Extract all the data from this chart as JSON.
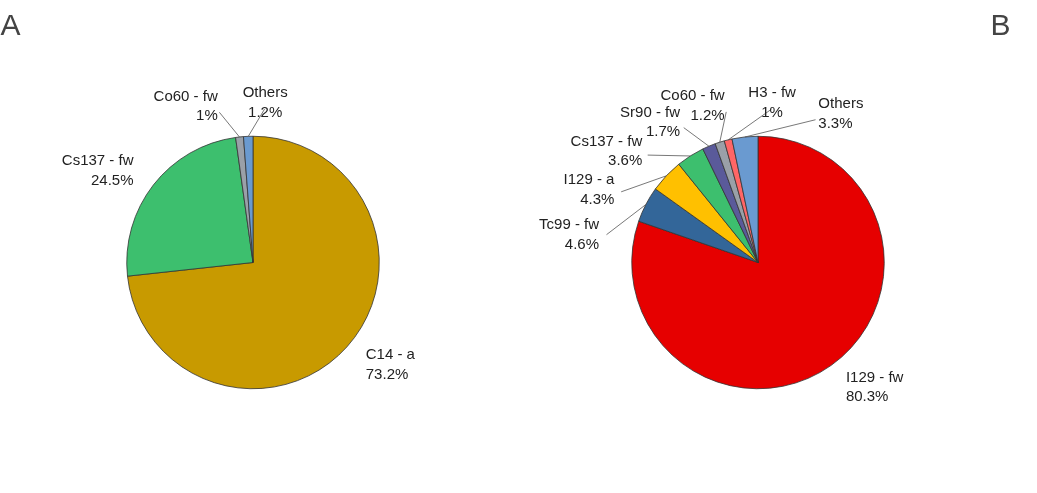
{
  "chart_data": [
    {
      "type": "pie",
      "title": "A",
      "categories": [
        "C14 - a",
        "Cs137 - fw",
        "Co60 - fw",
        "Others"
      ],
      "values": [
        73.2,
        24.5,
        1,
        1.2
      ],
      "value_labels": [
        "73.2%",
        "24.5%",
        "1%",
        "1.2%"
      ],
      "colors": [
        "#c89a00",
        "#3dbf6e",
        "#9aa0a8",
        "#6a9ad0"
      ]
    },
    {
      "type": "pie",
      "title": "B",
      "categories": [
        "I129 - fw",
        "Tc99 - fw",
        "I129 - a",
        "Cs137 - fw",
        "Sr90 - fw",
        "Co60 - fw",
        "H3 - fw",
        "Others"
      ],
      "values": [
        80.3,
        4.6,
        4.3,
        3.6,
        1.7,
        1.2,
        1,
        3.3
      ],
      "value_labels": [
        "80.3%",
        "4.6%",
        "4.3%",
        "3.6%",
        "1.7%",
        "1.2%",
        "1%",
        "3.3%"
      ],
      "colors": [
        "#e60000",
        "#336699",
        "#ffc000",
        "#3dbf6e",
        "#5a5a9a",
        "#9aa0a8",
        "#ff6666",
        "#6a9ad0"
      ]
    }
  ]
}
